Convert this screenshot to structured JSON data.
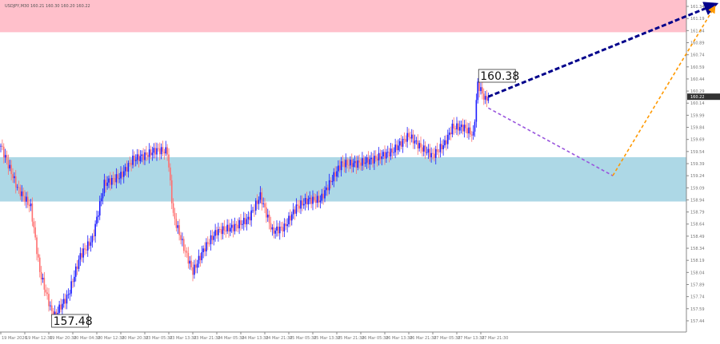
{
  "chart_data": {
    "type": "candlestick",
    "title": "USDJPY,M30 160.21 160.30 160.20 160.22",
    "symbol": "USDJPY",
    "timeframe": "M30",
    "current_price": "160.22",
    "ylim": [
      157.3,
      161.4
    ],
    "y_ticks": [
      "161.34",
      "161.19",
      "161.04",
      "160.89",
      "160.74",
      "160.59",
      "160.44",
      "160.29",
      "160.14",
      "159.99",
      "159.84",
      "159.69",
      "159.54",
      "159.39",
      "159.24",
      "159.09",
      "158.94",
      "158.79",
      "158.64",
      "158.49",
      "158.34",
      "158.19",
      "158.04",
      "157.89",
      "157.74",
      "157.59",
      "157.44"
    ],
    "x_ticks": [
      "19 Mar 2026",
      "19 Mar 12:30",
      "19 Mar 20:30",
      "20 Mar 04:30",
      "20 Mar 12:30",
      "20 Mar 20:30",
      "23 Mar 05:30",
      "23 Mar 13:30",
      "23 Mar 21:30",
      "24 Mar 05:30",
      "24 Mar 13:30",
      "24 Mar 21:30",
      "25 Mar 05:30",
      "25 Mar 13:30",
      "25 Mar 21:30",
      "26 Mar 05:30",
      "26 Mar 13:30",
      "26 Mar 21:30",
      "27 Mar 05:30",
      "27 Mar 13:30",
      "27 Mar 21:30"
    ],
    "bars_per_x_tick": 16,
    "price_path": [
      [
        0,
        159.61
      ],
      [
        11,
        159.09
      ],
      [
        20,
        158.85
      ],
      [
        26,
        158.05
      ],
      [
        35,
        157.48
      ],
      [
        45,
        157.76
      ],
      [
        53,
        158.25
      ],
      [
        61,
        158.45
      ],
      [
        69,
        159.14
      ],
      [
        80,
        159.24
      ],
      [
        88,
        159.44
      ],
      [
        96,
        159.49
      ],
      [
        104,
        159.56
      ],
      [
        111,
        159.54
      ],
      [
        115,
        158.75
      ],
      [
        122,
        158.35
      ],
      [
        128,
        158.05
      ],
      [
        136,
        158.35
      ],
      [
        144,
        158.55
      ],
      [
        155,
        158.6
      ],
      [
        165,
        158.7
      ],
      [
        173,
        158.99
      ],
      [
        181,
        158.55
      ],
      [
        189,
        158.6
      ],
      [
        197,
        158.85
      ],
      [
        205,
        158.94
      ],
      [
        213,
        158.94
      ],
      [
        219,
        159.14
      ],
      [
        227,
        159.39
      ],
      [
        237,
        159.39
      ],
      [
        248,
        159.44
      ],
      [
        261,
        159.54
      ],
      [
        272,
        159.74
      ],
      [
        280,
        159.59
      ],
      [
        288,
        159.49
      ],
      [
        296,
        159.64
      ],
      [
        301,
        159.84
      ],
      [
        309,
        159.84
      ],
      [
        315,
        159.74
      ],
      [
        318,
        160.38
      ],
      [
        323,
        160.18
      ],
      [
        325,
        160.22
      ]
    ],
    "annotations": [
      {
        "label": "160.38",
        "type": "high"
      },
      {
        "label": "157.48",
        "type": "low"
      }
    ],
    "zones": [
      {
        "name": "resistance",
        "from": 161.02,
        "to": 161.45,
        "color": "#ffc0cb"
      },
      {
        "name": "support",
        "from": 158.92,
        "to": 159.47,
        "color": "#add8e6"
      }
    ],
    "forecast_lines": [
      {
        "name": "main",
        "from": [
          325,
          160.22
        ],
        "to": [
          477,
          161.37
        ],
        "color": "#00008b"
      },
      {
        "name": "correction",
        "from": [
          325,
          160.08
        ],
        "to": [
          408,
          159.24
        ],
        "color": "#9955dd"
      },
      {
        "name": "rebound",
        "from": [
          408,
          159.24
        ],
        "to": [
          476,
          161.34
        ],
        "color": "#ff9900"
      }
    ],
    "colors": {
      "bull": "#1a1aff",
      "bear": "#ff7070"
    }
  }
}
